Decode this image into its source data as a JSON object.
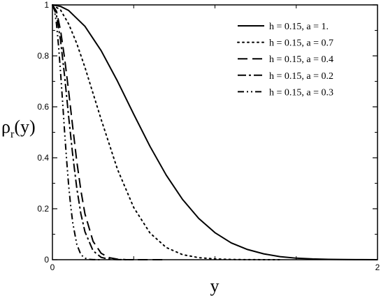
{
  "chart_data": {
    "type": "line",
    "title": "",
    "xlabel": "y",
    "ylabel": "ρ_r(y)",
    "ylabel_main": "ρ",
    "ylabel_sub": "r",
    "ylabel_tail": "(y)",
    "xlim": [
      0,
      2
    ],
    "ylim": [
      0,
      1
    ],
    "x_ticks": [
      0,
      2
    ],
    "x_minor_ticks": [
      0.5,
      1,
      1.5
    ],
    "y_ticks": [
      0,
      0.2,
      0.4,
      0.6,
      0.8,
      1
    ],
    "y_tick_labels": [
      "0",
      "0.2",
      "0.4",
      "0.6",
      "0.8",
      "1"
    ],
    "x_tick_labels": [
      "0",
      "2"
    ],
    "grid": false,
    "legend_position": "top-right",
    "series": [
      {
        "name": "h = 0.15, a = 1.",
        "style": "solid",
        "x": [
          0,
          0.05,
          0.1,
          0.2,
          0.3,
          0.4,
          0.5,
          0.6,
          0.7,
          0.8,
          0.9,
          1.0,
          1.1,
          1.2,
          1.3,
          1.4,
          1.5,
          1.6,
          1.7,
          1.8,
          1.9,
          2.0
        ],
        "y": [
          1.0,
          0.994,
          0.978,
          0.916,
          0.82,
          0.701,
          0.571,
          0.445,
          0.332,
          0.237,
          0.162,
          0.106,
          0.066,
          0.04,
          0.023,
          0.012,
          0.006,
          0.003,
          0.0015,
          0.0007,
          0.0003,
          0.0001
        ]
      },
      {
        "name": "h = 0.15, a = 0.7",
        "style": "dotted",
        "x": [
          0,
          0.05,
          0.1,
          0.15,
          0.2,
          0.3,
          0.4,
          0.5,
          0.6,
          0.7,
          0.8,
          0.9,
          1.0,
          1.1,
          1.2,
          1.3,
          1.4
        ],
        "y": [
          1.0,
          0.98,
          0.925,
          0.848,
          0.755,
          0.55,
          0.355,
          0.205,
          0.105,
          0.048,
          0.02,
          0.008,
          0.003,
          0.001,
          0.0003,
          0.0001,
          0.0
        ]
      },
      {
        "name": "h = 0.15, a = 0.4",
        "style": "dashed",
        "x": [
          0,
          0.025,
          0.05,
          0.075,
          0.1,
          0.125,
          0.15,
          0.175,
          0.2,
          0.25,
          0.3,
          0.35,
          0.4,
          0.45,
          0.5,
          0.55,
          0.6,
          0.7
        ],
        "y": [
          1.0,
          0.975,
          0.9,
          0.79,
          0.66,
          0.52,
          0.385,
          0.272,
          0.18,
          0.072,
          0.025,
          0.008,
          0.002,
          0.0005,
          0.0001,
          0.0,
          0.0,
          0.0
        ]
      },
      {
        "name": "h = 0.15, a = 0.2",
        "style": "dash-dot",
        "x": [
          0,
          0.025,
          0.05,
          0.075,
          0.1,
          0.125,
          0.15,
          0.175,
          0.2,
          0.25,
          0.3,
          0.35,
          0.4,
          0.45,
          0.5
        ],
        "y": [
          1.0,
          0.96,
          0.86,
          0.72,
          0.56,
          0.41,
          0.28,
          0.18,
          0.11,
          0.035,
          0.009,
          0.002,
          0.0004,
          0.0001,
          0.0
        ]
      },
      {
        "name": "h = 0.15, a = 0.3",
        "style": "dash-dot-dot",
        "x": [
          0,
          0.0125,
          0.025,
          0.0375,
          0.05,
          0.0625,
          0.075,
          0.0875,
          0.1,
          0.1125,
          0.125,
          0.15,
          0.175,
          0.2,
          0.225,
          0.25,
          0.3
        ],
        "y": [
          1.0,
          0.98,
          0.925,
          0.84,
          0.735,
          0.62,
          0.5,
          0.39,
          0.29,
          0.21,
          0.145,
          0.06,
          0.02,
          0.006,
          0.0015,
          0.0003,
          0.0
        ]
      }
    ]
  }
}
